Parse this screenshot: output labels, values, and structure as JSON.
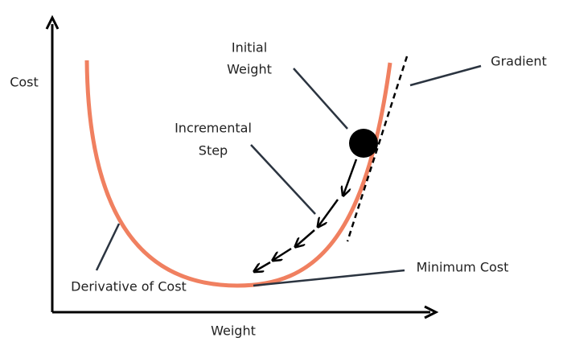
{
  "axes": {
    "y_label": "Cost",
    "x_label": "Weight"
  },
  "labels": {
    "initial_weight": [
      "Initial",
      "Weight"
    ],
    "incremental_step": [
      "Incremental",
      "Step"
    ],
    "gradient": "Gradient",
    "derivative_of_cost": "Derivative of Cost",
    "minimum_cost": "Minimum Cost"
  }
}
